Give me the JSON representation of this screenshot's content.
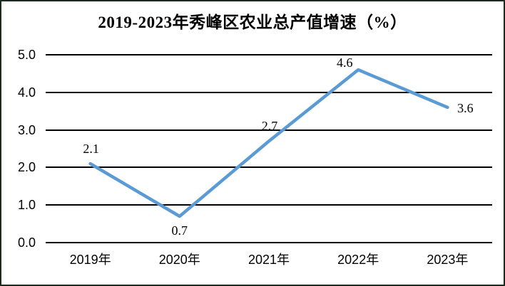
{
  "colors": {
    "line": "#5B9BD5",
    "grid": "#000000",
    "text": "#000000",
    "frame_border": "#1c2a20",
    "background": "#ffffff"
  },
  "chart_data": {
    "type": "line",
    "title": "2019-2023年秀峰区农业总产值增速（%）",
    "categories": [
      "2019年",
      "2020年",
      "2021年",
      "2022年",
      "2023年"
    ],
    "values": [
      2.1,
      0.7,
      2.7,
      4.6,
      3.6
    ],
    "data_labels": [
      "2.1",
      "0.7",
      "2.7",
      "4.6",
      "3.6"
    ],
    "label_positions": [
      "above",
      "below",
      "above",
      "above-left",
      "right"
    ],
    "y_ticks": [
      "0.0",
      "1.0",
      "2.0",
      "3.0",
      "4.0",
      "5.0"
    ],
    "ylim": [
      0.0,
      5.0
    ],
    "xlabel": "",
    "ylabel": "",
    "grid": "horizontal-only",
    "legend": "none",
    "line_color": "#5B9BD5"
  }
}
